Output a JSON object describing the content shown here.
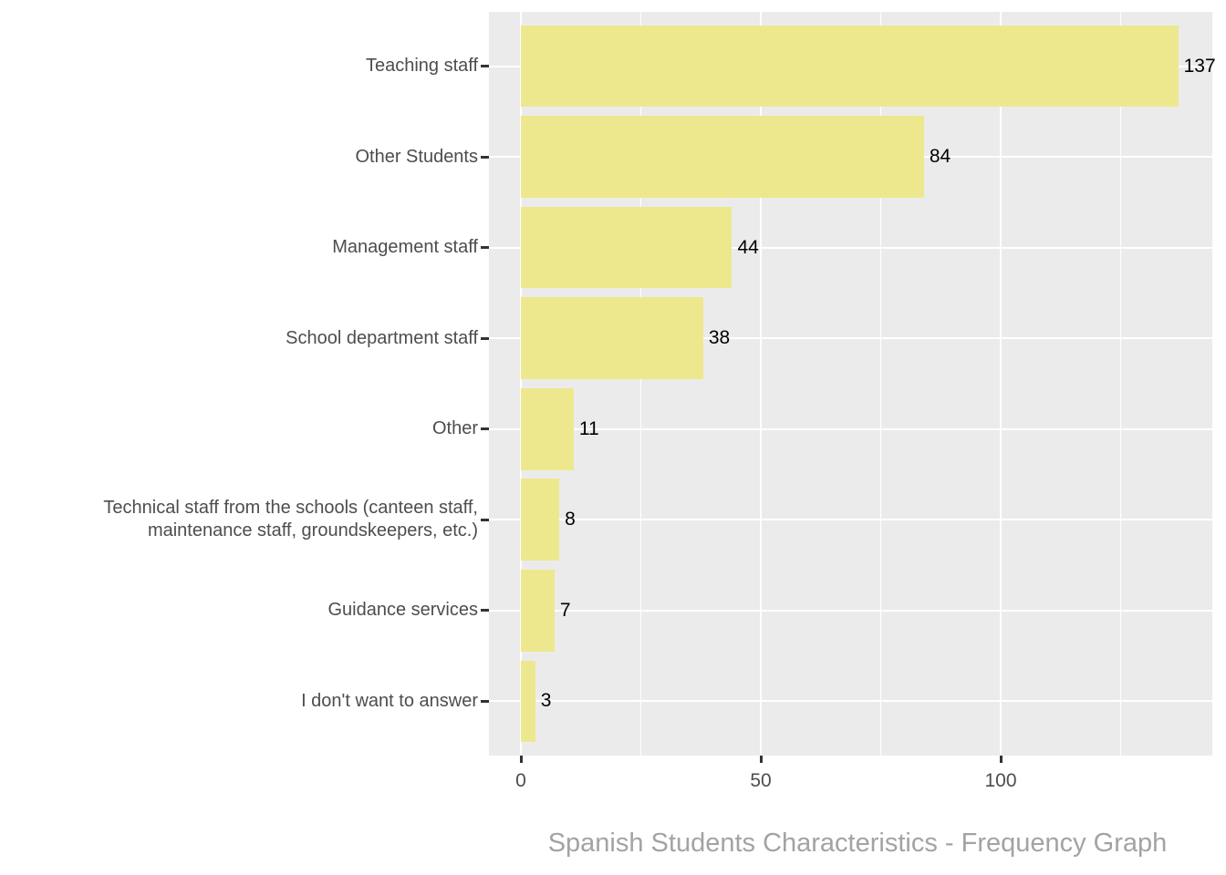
{
  "chart_data": {
    "type": "bar",
    "orientation": "horizontal",
    "title": "Spanish Students Characteristics - Frequency Graph",
    "xlabel": "",
    "ylabel": "",
    "categories": [
      "Teaching staff",
      "Other Students",
      "Management staff",
      "School department staff",
      "Other",
      "Technical staff from the schools (canteen staff, maintenance staff, groundskeepers, etc.)",
      "Guidance services",
      "I don't want to answer"
    ],
    "values": [
      137,
      84,
      44,
      38,
      11,
      8,
      7,
      3
    ],
    "bar_labels": [
      "137",
      "84",
      "44",
      "38",
      "11",
      "8",
      "7",
      "3"
    ],
    "x_ticks": [
      0,
      50,
      100
    ],
    "x_tick_labels": [
      "0",
      "50",
      "100"
    ],
    "x_minor_gridlines": [
      25,
      75,
      125
    ],
    "xlim": [
      0,
      143
    ],
    "grid": "on",
    "legend": "none"
  },
  "colors": {
    "panel_bg": "#EBEBEB",
    "grid": "#FFFFFF",
    "bar_fill": "#EDE88E",
    "axis_text": "#4D4D4D",
    "value_label": "#000000",
    "tick_mark": "#333333",
    "title": "#A3A3A3"
  }
}
